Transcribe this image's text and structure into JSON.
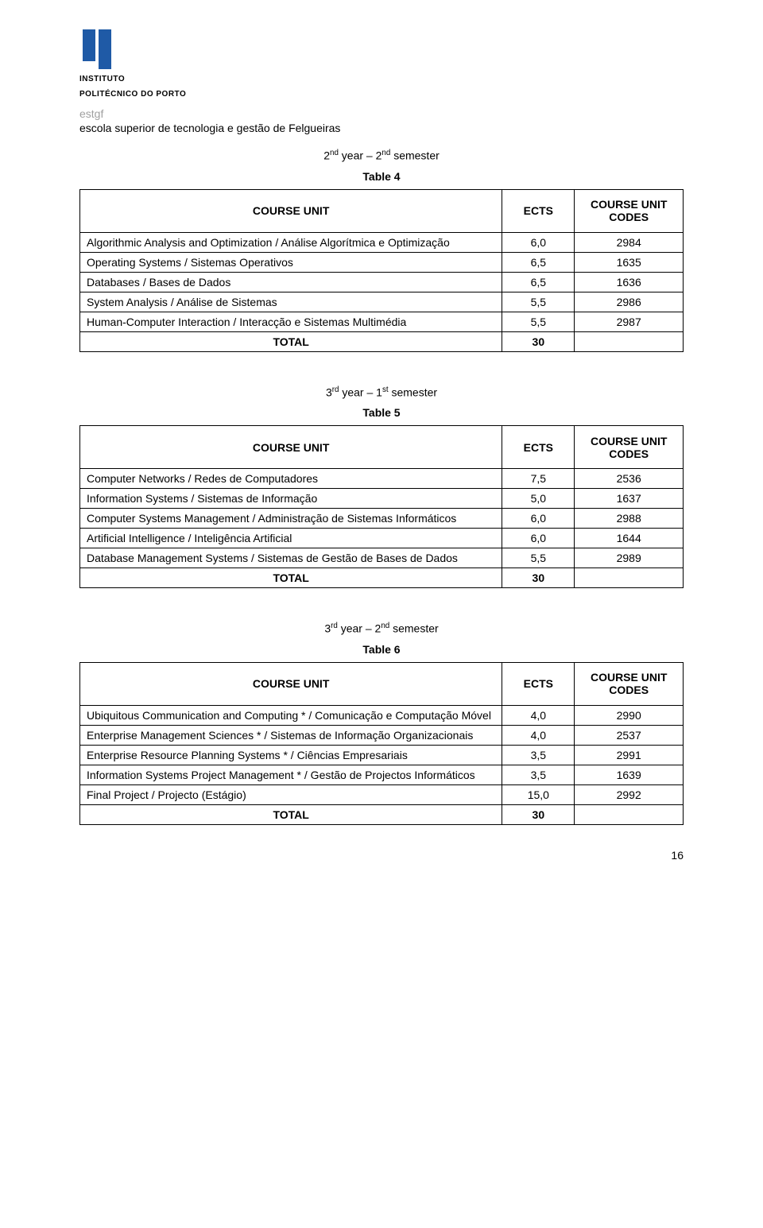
{
  "header": {
    "instituto_line1": "INSTITUTO",
    "instituto_line2": "POLITÉCNICO DO PORTO",
    "estgf": "estgf",
    "school": "escola superior de tecnologia e gestão de Felgueiras",
    "logo": {
      "blue": "#1f5aa6",
      "text_color": "#000000"
    }
  },
  "semesters": [
    {
      "label_html": "2<sup>nd</sup> year – 2<sup>nd</sup> semester",
      "table_no": "Table 4"
    },
    {
      "label_html": "3<sup>rd</sup> year – 1<sup>st</sup> semester",
      "table_no": "Table 5"
    },
    {
      "label_html": "3<sup>rd</sup> year – 2<sup>nd</sup> semester",
      "table_no": "Table 6"
    }
  ],
  "columns": {
    "unit": "COURSE UNIT",
    "ects": "ECTS",
    "code": "COURSE UNIT CODES"
  },
  "total_label": "TOTAL",
  "tables": [
    {
      "rows": [
        {
          "name": "Algorithmic Analysis and Optimization / Análise Algorítmica e Optimização",
          "ects": "6,0",
          "code": "2984"
        },
        {
          "name": "Operating Systems / Sistemas Operativos",
          "ects": "6,5",
          "code": "1635"
        },
        {
          "name": "Databases / Bases de Dados",
          "ects": "6,5",
          "code": "1636"
        },
        {
          "name": "System Analysis / Análise de Sistemas",
          "ects": "5,5",
          "code": "2986"
        },
        {
          "name": "Human-Computer Interaction / Interacção e Sistemas Multimédia",
          "ects": "5,5",
          "code": "2987"
        }
      ],
      "total": "30"
    },
    {
      "rows": [
        {
          "name": "Computer Networks / Redes de Computadores",
          "ects": "7,5",
          "code": "2536"
        },
        {
          "name": "Information Systems / Sistemas de Informação",
          "ects": "5,0",
          "code": "1637"
        },
        {
          "name": "Computer Systems Management / Administração de Sistemas Informáticos",
          "ects": "6,0",
          "code": "2988"
        },
        {
          "name": "Artificial Intelligence / Inteligência Artificial",
          "ects": "6,0",
          "code": "1644"
        },
        {
          "name": "Database Management Systems / Sistemas de Gestão de Bases de Dados",
          "ects": "5,5",
          "code": "2989"
        }
      ],
      "total": "30"
    },
    {
      "rows": [
        {
          "name": "Ubiquitous Communication and Computing * / Comunicação e Computação Móvel",
          "ects": "4,0",
          "code": "2990"
        },
        {
          "name": "Enterprise Management Sciences * / Sistemas de Informação Organizacionais",
          "ects": "4,0",
          "code": "2537"
        },
        {
          "name": "Enterprise Resource Planning Systems * / Ciências Empresariais",
          "ects": "3,5",
          "code": "2991"
        },
        {
          "name": "Information Systems Project Management * / Gestão de Projectos Informáticos",
          "ects": "3,5",
          "code": "1639"
        },
        {
          "name": "Final Project / Projecto (Estágio)",
          "ects": "15,0",
          "code": "2992"
        }
      ],
      "total": "30"
    }
  ],
  "page_number": "16",
  "style": {
    "border_color": "#000000",
    "header_fontsize": 14,
    "cell_fontsize": 14
  }
}
